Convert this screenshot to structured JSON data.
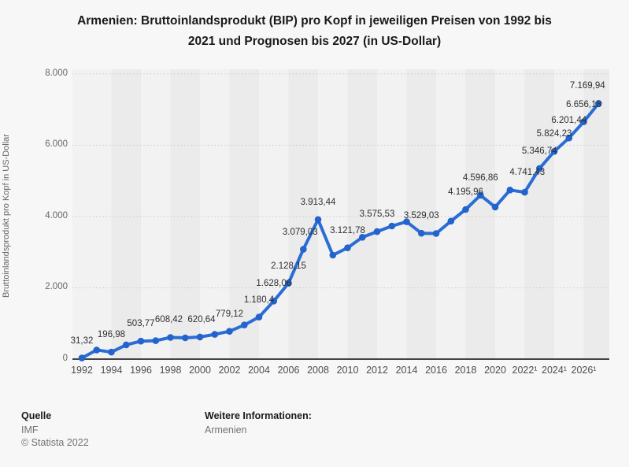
{
  "title": {
    "line1": "Armenien: Bruttoinlandsprodukt (BIP) pro Kopf in jeweiligen Preisen von 1992 bis",
    "line2": "2021 und Prognosen bis 2027 (in US-Dollar)"
  },
  "chart_data": {
    "type": "line",
    "title": "Armenien: Bruttoinlandsprodukt (BIP) pro Kopf in jeweiligen Preisen von 1992 bis 2021 und Prognosen bis 2027 (in US-Dollar)",
    "ylabel": "Bruttoinlandsprodukt pro Kopf in US-Dollar",
    "xlabel": "",
    "ylim": [
      0,
      8000
    ],
    "y_tick_labels": [
      "0",
      "2.000",
      "4.000",
      "6.000",
      "8.000"
    ],
    "x_tick_labels": [
      "1992",
      "1994",
      "1996",
      "1998",
      "2000",
      "2002",
      "2004",
      "2006",
      "2008",
      "2010",
      "2012",
      "2014",
      "2016",
      "2018",
      "2020",
      "2022¹",
      "2024¹",
      "2026¹"
    ],
    "years": [
      1992,
      1993,
      1994,
      1995,
      1996,
      1997,
      1998,
      1999,
      2000,
      2001,
      2002,
      2003,
      2004,
      2005,
      2006,
      2007,
      2008,
      2009,
      2010,
      2011,
      2012,
      2013,
      2014,
      2015,
      2016,
      2017,
      2018,
      2019,
      2020,
      2021,
      2022,
      2023,
      2024,
      2025,
      2026,
      2027
    ],
    "values": [
      31.32,
      257,
      196.98,
      400,
      503.77,
      516,
      608.42,
      597,
      620.64,
      693,
      779.12,
      956,
      1180.4,
      1628.06,
      2128.15,
      3079.03,
      3913.44,
      2916,
      3121.78,
      3417,
      3575.53,
      3733,
      3853,
      3529.03,
      3524,
      3869,
      4195.96,
      4596.86,
      4266,
      4741.43,
      4680,
      5346.74,
      5824.23,
      6201.44,
      6656.18,
      7169.94
    ],
    "point_labels": {
      "1992": "31,32",
      "1994": "196,98",
      "1996": "503,77",
      "1998": "608,42",
      "2000": "620,64",
      "2002": "779,12",
      "2004": "1.180,4",
      "2005": "1.628,06",
      "2006": "2.128,15",
      "2007": "3.079,03",
      "2008": "3.913,44",
      "2010": "3.121,78",
      "2012": "3.575,53",
      "2015": "3.529,03",
      "2018": "4.195,96",
      "2019": "4.596,86",
      "2021": "4.741,43",
      "2023": "5.346,74",
      "2024": "5.824,23",
      "2025": "6.201,44",
      "2026": "6.656,18",
      "2027": "7.169,94"
    },
    "forecast_marker": "¹",
    "line_color": "#2a6dd5",
    "marker_color": "#2263cc",
    "band_color_light": "#f2f2f2",
    "band_color_dark": "#ebebeb",
    "gridline_color": "#c9c9c9",
    "axis_color": "#2b2b2b",
    "legend": null,
    "grid": "horizontal-dotted"
  },
  "footer": {
    "source_label": "Quelle",
    "source_value": "IMF",
    "copyright": "© Statista 2022",
    "info_label": "Weitere Informationen:",
    "info_link": "Armenien"
  }
}
